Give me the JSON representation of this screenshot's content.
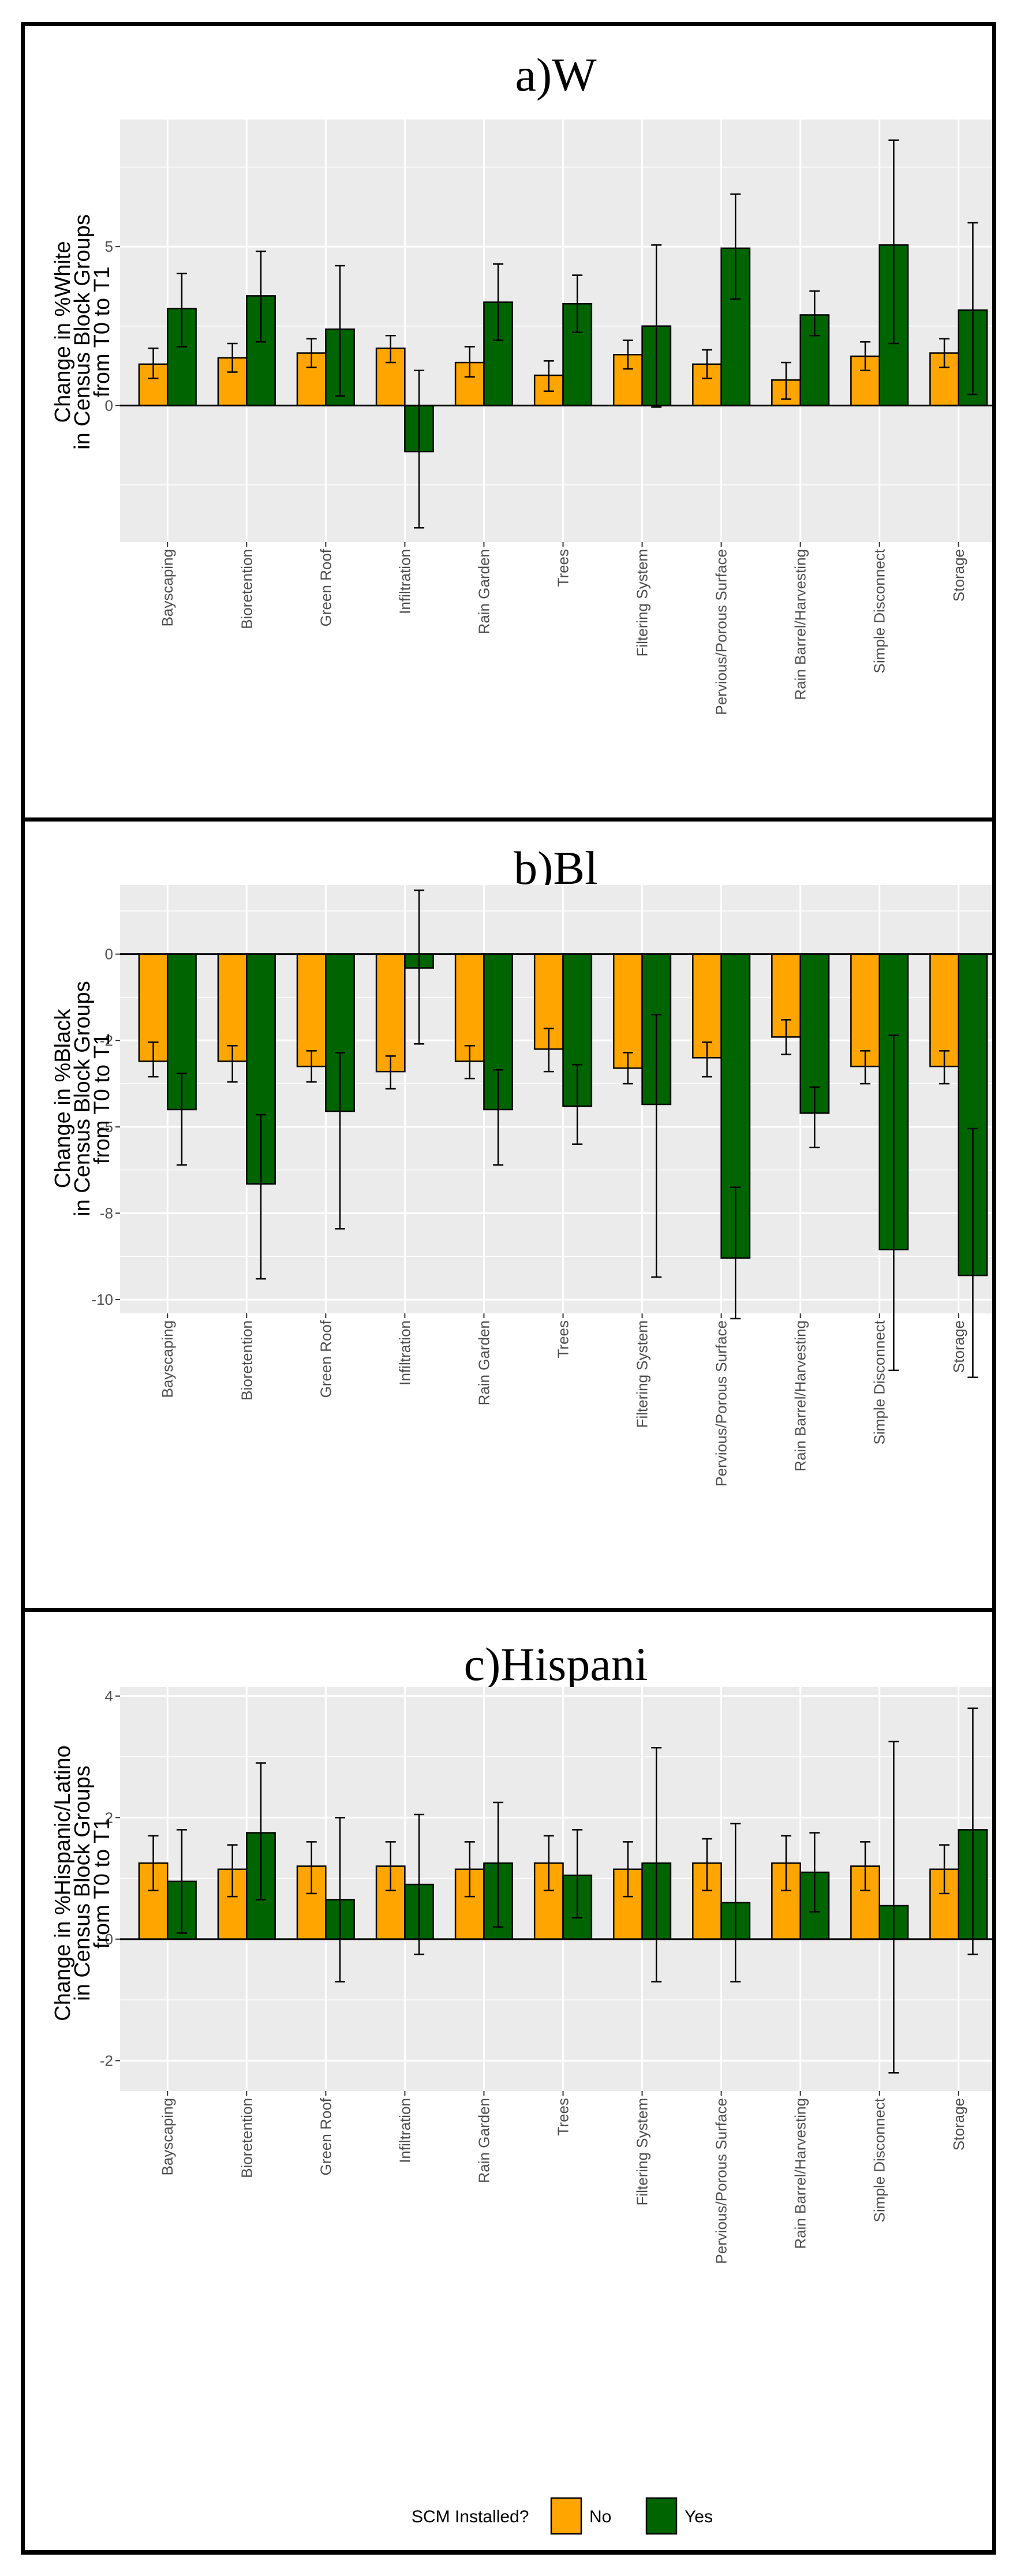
{
  "chart_data": [
    {
      "type": "bar",
      "title": "a)W",
      "ylabel": [
        "Change in %White",
        "in Census Block Groups",
        "from T0 to T1"
      ],
      "ylim": [
        -4.3,
        9.0
      ],
      "yticks": [
        0,
        5
      ],
      "categories": [
        "Bayscaping",
        "Bioretention",
        "Green Roof",
        "Infiltration",
        "Rain Garden",
        "Trees",
        "Filtering System",
        "Pervious/Porous Surface",
        "Rain Barrel/Harvesting",
        "Simple Disconnect",
        "Storage"
      ],
      "series": [
        {
          "name": "No",
          "color": "#FFA500",
          "values": [
            1.3,
            1.5,
            1.65,
            1.8,
            1.35,
            0.95,
            1.6,
            1.3,
            0.8,
            1.55,
            1.65
          ],
          "err_low": [
            0.85,
            1.05,
            1.2,
            1.35,
            0.9,
            0.45,
            1.15,
            0.85,
            0.2,
            1.1,
            1.2
          ],
          "err_high": [
            1.8,
            1.95,
            2.1,
            2.2,
            1.85,
            1.4,
            2.05,
            1.75,
            1.35,
            2.0,
            2.1
          ]
        },
        {
          "name": "Yes",
          "color": "#006400",
          "values": [
            3.05,
            3.45,
            2.4,
            -1.45,
            3.25,
            3.2,
            2.5,
            4.95,
            2.85,
            5.05,
            3.0
          ],
          "err_low": [
            1.85,
            2.0,
            0.3,
            -3.85,
            2.05,
            2.3,
            -0.05,
            3.35,
            2.2,
            1.95,
            0.35
          ],
          "err_high": [
            4.15,
            4.85,
            4.4,
            1.1,
            4.45,
            4.1,
            5.05,
            6.65,
            3.6,
            8.35,
            5.75
          ]
        }
      ]
    },
    {
      "type": "bar",
      "title": "b)Bl",
      "ylabel": [
        "Change in %Black",
        "in Census Block Groups",
        "from T0 to T1"
      ],
      "ylim": [
        -10.4,
        2.0
      ],
      "yticks": [
        0,
        -2,
        -5,
        -8,
        -10
      ],
      "ytick_values": [
        0,
        -2.5,
        -5,
        -7.5,
        -10
      ],
      "categories": [
        "Bayscaping",
        "Bioretention",
        "Green Roof",
        "Infiltration",
        "Rain Garden",
        "Trees",
        "Filtering System",
        "Pervious/Porous Surface",
        "Rain Barrel/Harvesting",
        "Simple Disconnect",
        "Storage"
      ],
      "series": [
        {
          "name": "No",
          "color": "#FFA500",
          "values": [
            -3.1,
            -3.1,
            -3.25,
            -3.4,
            -3.1,
            -2.75,
            -3.3,
            -3.0,
            -2.4,
            -3.25,
            -3.25
          ],
          "err_low": [
            -3.55,
            -3.7,
            -3.7,
            -3.9,
            -3.6,
            -3.4,
            -3.75,
            -3.55,
            -2.9,
            -3.75,
            -3.75
          ],
          "err_high": [
            -2.55,
            -2.65,
            -2.8,
            -2.95,
            -2.65,
            -2.15,
            -2.85,
            -2.55,
            -1.9,
            -2.8,
            -2.8
          ]
        },
        {
          "name": "Yes",
          "color": "#006400",
          "values": [
            -4.5,
            -6.65,
            -4.55,
            -0.4,
            -4.5,
            -4.4,
            -4.35,
            -8.8,
            -4.6,
            -8.55,
            -9.3
          ],
          "err_low": [
            -6.1,
            -9.4,
            -7.95,
            -2.6,
            -6.1,
            -5.5,
            -9.35,
            -10.55,
            -5.6,
            -12.05,
            -12.25
          ],
          "err_high": [
            -3.45,
            -4.65,
            -2.85,
            1.85,
            -3.35,
            -3.2,
            -1.75,
            -6.75,
            -3.85,
            -2.35,
            -5.05
          ]
        }
      ]
    },
    {
      "type": "bar",
      "title": "c)Hispani",
      "ylabel": [
        "Change in %Hispanic/Latino",
        "in Census Block Groups",
        "from T0 to T1"
      ],
      "ylim": [
        -2.5,
        4.15
      ],
      "yticks": [
        -2,
        0,
        2,
        4
      ],
      "categories": [
        "Bayscaping",
        "Bioretention",
        "Green Roof",
        "Infiltration",
        "Rain Garden",
        "Trees",
        "Filtering System",
        "Pervious/Porous Surface",
        "Rain Barrel/Harvesting",
        "Simple Disconnect",
        "Storage"
      ],
      "series": [
        {
          "name": "No",
          "color": "#FFA500",
          "values": [
            1.25,
            1.15,
            1.2,
            1.2,
            1.15,
            1.25,
            1.15,
            1.25,
            1.25,
            1.2,
            1.15
          ],
          "err_low": [
            0.8,
            0.7,
            0.75,
            0.8,
            0.7,
            0.8,
            0.7,
            0.8,
            0.8,
            0.8,
            0.75
          ],
          "err_high": [
            1.7,
            1.55,
            1.6,
            1.6,
            1.6,
            1.7,
            1.6,
            1.65,
            1.7,
            1.6,
            1.55
          ]
        },
        {
          "name": "Yes",
          "color": "#006400",
          "values": [
            0.95,
            1.75,
            0.65,
            0.9,
            1.25,
            1.05,
            1.25,
            0.6,
            1.1,
            0.55,
            1.8
          ],
          "err_low": [
            0.1,
            0.65,
            -0.7,
            -0.25,
            0.2,
            0.35,
            -0.7,
            -0.7,
            0.45,
            -2.2,
            -0.25
          ],
          "err_high": [
            1.8,
            2.9,
            2.0,
            2.05,
            2.25,
            1.8,
            3.15,
            1.9,
            1.75,
            3.25,
            3.8
          ]
        }
      ]
    }
  ],
  "legend": {
    "title": "SCM Installed?",
    "items": [
      {
        "label": "No",
        "color": "#FFA500"
      },
      {
        "label": "Yes",
        "color": "#006400"
      }
    ]
  }
}
